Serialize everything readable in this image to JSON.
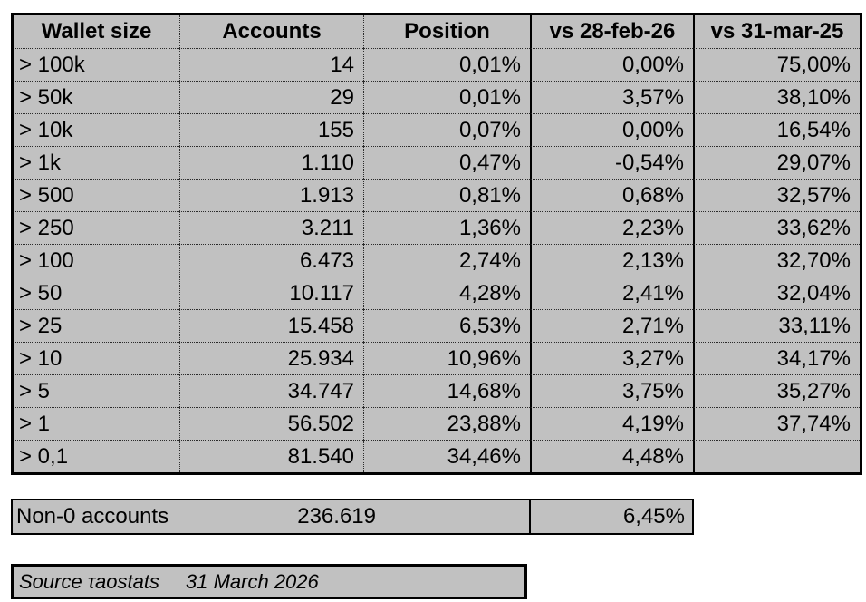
{
  "colors": {
    "cell_fill": "#c1c1c1",
    "border": "#000000",
    "page_background": "#ffffff"
  },
  "table": {
    "columns": [
      "Wallet size",
      "Accounts",
      "Position",
      "vs 28-feb-26",
      "vs 31-mar-25"
    ],
    "rows": [
      [
        "> 100k",
        "14",
        "0,01%",
        "0,00%",
        "75,00%"
      ],
      [
        "> 50k",
        "29",
        "0,01%",
        "3,57%",
        "38,10%"
      ],
      [
        "> 10k",
        "155",
        "0,07%",
        "0,00%",
        "16,54%"
      ],
      [
        "> 1k",
        "1.110",
        "0,47%",
        "-0,54%",
        "29,07%"
      ],
      [
        "> 500",
        "1.913",
        "0,81%",
        "0,68%",
        "32,57%"
      ],
      [
        "> 250",
        "3.211",
        "1,36%",
        "2,23%",
        "33,62%"
      ],
      [
        "> 100",
        "6.473",
        "2,74%",
        "2,13%",
        "32,70%"
      ],
      [
        "> 50",
        "10.117",
        "4,28%",
        "2,41%",
        "32,04%"
      ],
      [
        "> 25",
        "15.458",
        "6,53%",
        "2,71%",
        "33,11%"
      ],
      [
        "> 10",
        "25.934",
        "10,96%",
        "3,27%",
        "34,17%"
      ],
      [
        "> 5",
        "34.747",
        "14,68%",
        "3,75%",
        "35,27%"
      ],
      [
        "> 1",
        "56.502",
        "23,88%",
        "4,19%",
        "37,74%"
      ],
      [
        "> 0,1",
        "81.540",
        "34,46%",
        "4,48%",
        ""
      ]
    ]
  },
  "summary": {
    "label": "Non-0 accounts",
    "accounts": "236.619",
    "vs_feb": "6,45%"
  },
  "source": {
    "label": "Source τaostats",
    "date": "31 March 2026"
  }
}
